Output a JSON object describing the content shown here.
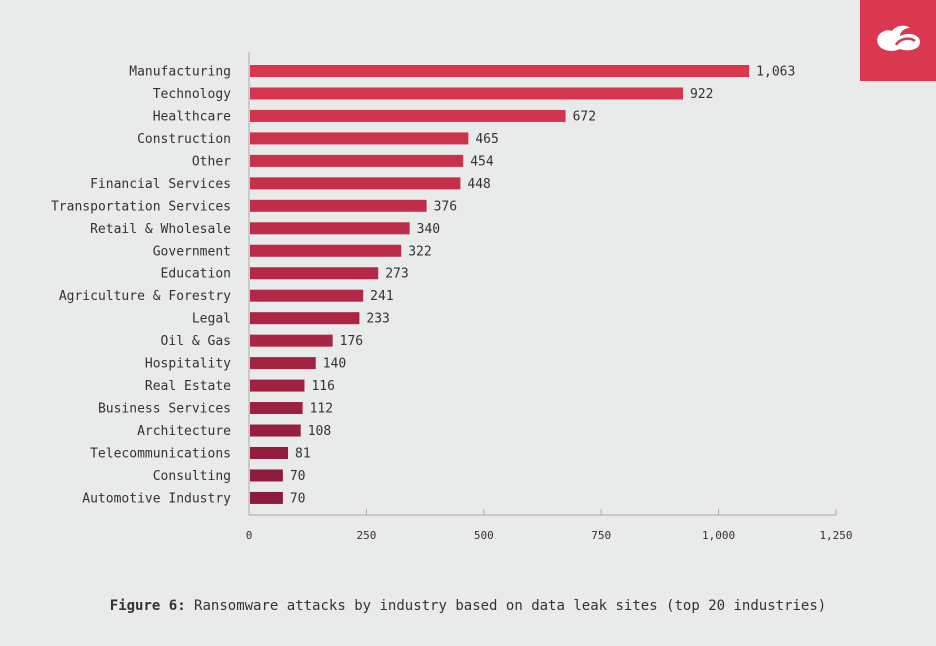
{
  "chart_data": {
    "type": "bar",
    "orientation": "horizontal",
    "categories": [
      "Manufacturing",
      "Technology",
      "Healthcare",
      "Construction",
      "Other",
      "Financial Services",
      "Transportation Services",
      "Retail & Wholesale",
      "Government",
      "Education",
      "Agriculture & Forestry",
      "Legal",
      "Oil & Gas",
      "Hospitality",
      "Real Estate",
      "Business Services",
      "Architecture",
      "Telecommunications",
      "Consulting",
      "Automotive Industry"
    ],
    "values": [
      1063,
      922,
      672,
      465,
      454,
      448,
      376,
      340,
      322,
      273,
      241,
      233,
      176,
      140,
      116,
      112,
      108,
      81,
      70,
      70
    ],
    "value_labels": [
      "1,063",
      "922",
      "672",
      "465",
      "454",
      "448",
      "376",
      "340",
      "322",
      "273",
      "241",
      "233",
      "176",
      "140",
      "116",
      "112",
      "108",
      "81",
      "70",
      "70"
    ],
    "xticks": [
      0,
      250,
      500,
      750,
      1000,
      1250
    ],
    "xtick_labels": [
      "0",
      "250",
      "500",
      "750",
      "1,000",
      "1,250"
    ],
    "xlim": [
      0,
      1250
    ],
    "grid": false,
    "colors": {
      "top": "#d9374f",
      "bottom": "#8c1a3c"
    }
  },
  "caption": {
    "prefix": "Figure 6:",
    "text": " Ransomware attacks by industry based on data leak sites (top 20 industries)"
  },
  "logo": {
    "icon": "cloud-logo-icon",
    "color": "#d9384f"
  }
}
